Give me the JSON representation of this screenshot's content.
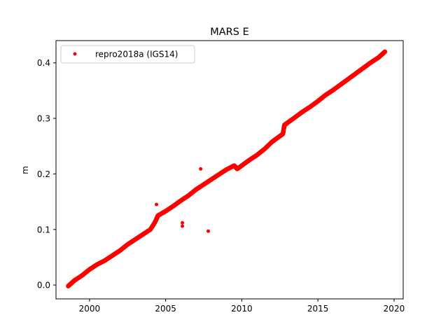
{
  "chart_data": {
    "type": "scatter",
    "title": "MARS E",
    "xlabel": "",
    "ylabel": "m",
    "xlim": [
      1997.8,
      2020.6
    ],
    "ylim": [
      -0.025,
      0.44
    ],
    "xticks": [
      2000,
      2005,
      2010,
      2015,
      2020
    ],
    "xtick_labels": [
      "2000",
      "2005",
      "2010",
      "2015",
      "2020"
    ],
    "yticks": [
      0.0,
      0.1,
      0.2,
      0.3,
      0.4
    ],
    "ytick_labels": [
      "0.0",
      "0.1",
      "0.2",
      "0.3",
      "0.4"
    ],
    "grid": false,
    "legend": {
      "position": "top-left",
      "entries": [
        "repro2018a (IGS14)"
      ]
    },
    "series": [
      {
        "name": "repro2018a (IGS14)",
        "color": "#ff0000",
        "marker": "circle",
        "x": [
          1998.6,
          1999.0,
          1999.5,
          2000.0,
          2000.5,
          2001.0,
          2001.5,
          2002.0,
          2002.5,
          2003.0,
          2003.5,
          2004.0,
          2004.3,
          2004.5,
          2005.0,
          2005.5,
          2006.0,
          2006.5,
          2007.0,
          2007.5,
          2008.0,
          2008.5,
          2009.0,
          2009.5,
          2009.7,
          2010.0,
          2010.5,
          2011.0,
          2011.5,
          2012.0,
          2012.5,
          2012.7,
          2012.8,
          2013.0,
          2013.5,
          2014.0,
          2014.5,
          2015.0,
          2015.5,
          2016.0,
          2016.5,
          2017.0,
          2017.5,
          2018.0,
          2018.5,
          2019.0,
          2019.4
        ],
        "y": [
          -0.002,
          0.008,
          0.017,
          0.028,
          0.037,
          0.044,
          0.053,
          0.062,
          0.073,
          0.082,
          0.091,
          0.1,
          0.113,
          0.125,
          0.133,
          0.142,
          0.152,
          0.161,
          0.172,
          0.181,
          0.19,
          0.199,
          0.208,
          0.215,
          0.209,
          0.215,
          0.225,
          0.234,
          0.245,
          0.258,
          0.268,
          0.272,
          0.288,
          0.292,
          0.302,
          0.312,
          0.321,
          0.331,
          0.342,
          0.351,
          0.361,
          0.371,
          0.381,
          0.391,
          0.401,
          0.41,
          0.42
        ]
      }
    ],
    "outliers": {
      "x": [
        2004.4,
        2006.1,
        2006.1,
        2007.3,
        2007.8
      ],
      "y": [
        0.145,
        0.112,
        0.106,
        0.209,
        0.097
      ]
    }
  }
}
